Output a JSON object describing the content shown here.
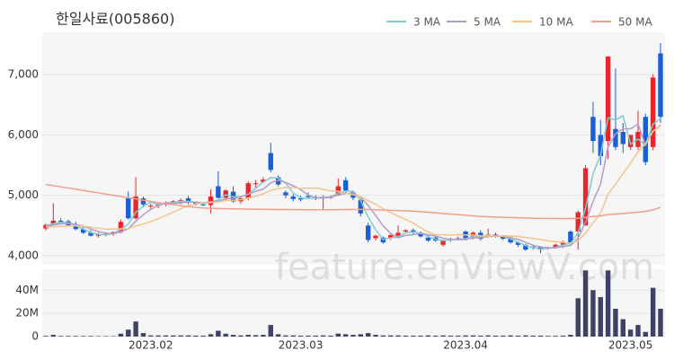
{
  "chart_data": [
    {
      "type": "candlestick",
      "title": "한일사료(005860)",
      "watermark": "feature.enViewV.com",
      "up_color": "#e8262c",
      "down_color": "#1a5fd6",
      "open": [
        4450,
        4530,
        4580,
        4570,
        4500,
        4440,
        4380,
        4330,
        4340,
        4360,
        4390,
        4950,
        4620,
        4950,
        4820,
        4830,
        4860,
        4880,
        4900,
        4950,
        4880,
        4850,
        4840,
        5150,
        4960,
        5060,
        4900,
        4950,
        5200,
        5220,
        5700,
        5300,
        5050,
        4980,
        4950,
        4990,
        4970,
        4960,
        4960,
        5000,
        5250,
        5050,
        4920,
        4500,
        4290,
        4300,
        4290,
        4330,
        4400,
        4420,
        4380,
        4300,
        4300,
        4180,
        4270,
        4280,
        4400,
        4300,
        4380,
        4330,
        4350,
        4320,
        4300,
        4220,
        4180,
        4150,
        4140,
        4130,
        4140,
        4180,
        4400,
        4400,
        4500,
        6300,
        6000,
        5900,
        6100,
        6050,
        5800,
        5800,
        6300,
        5800,
        7350
      ],
      "high": [
        4530,
        4870,
        4620,
        4600,
        4560,
        4480,
        4420,
        4380,
        4390,
        4400,
        4600,
        5060,
        5300,
        4980,
        4860,
        4880,
        4900,
        4920,
        4950,
        4990,
        4900,
        4880,
        5100,
        5400,
        5100,
        5150,
        4980,
        5230,
        5250,
        5300,
        5870,
        5330,
        5080,
        5020,
        4990,
        5050,
        5000,
        5000,
        5000,
        5280,
        5300,
        5080,
        4950,
        4550,
        4350,
        4320,
        4360,
        4500,
        4440,
        4450,
        4400,
        4340,
        4320,
        4270,
        4300,
        4320,
        4420,
        4400,
        4420,
        4450,
        4380,
        4340,
        4320,
        4240,
        4200,
        4180,
        4160,
        4150,
        4200,
        4250,
        4420,
        4750,
        5500,
        6550,
        6250,
        7300,
        7100,
        6200,
        6000,
        6400,
        6350,
        7000,
        7520
      ],
      "low": [
        4420,
        4500,
        4530,
        4480,
        4420,
        4360,
        4320,
        4300,
        4320,
        4330,
        4370,
        4600,
        4600,
        4800,
        4780,
        4790,
        4820,
        4840,
        4850,
        4850,
        4830,
        4820,
        4700,
        4950,
        4920,
        4880,
        4860,
        4920,
        5100,
        5200,
        5380,
        5150,
        4950,
        4900,
        4900,
        4950,
        4920,
        4750,
        4940,
        4990,
        5030,
        4920,
        4650,
        4220,
        4250,
        4200,
        4260,
        4290,
        4370,
        4360,
        4300,
        4230,
        4230,
        4150,
        4230,
        4250,
        4250,
        4270,
        4250,
        4300,
        4300,
        4260,
        4200,
        4150,
        4080,
        4100,
        4040,
        4100,
        4120,
        4130,
        4180,
        4100,
        4500,
        5700,
        5500,
        5600,
        5750,
        5700,
        5750,
        5750,
        5500,
        5750,
        6200
      ],
      "close": [
        4510,
        4580,
        4560,
        4500,
        4440,
        4380,
        4330,
        4350,
        4360,
        4390,
        4560,
        4620,
        4980,
        4850,
        4830,
        4860,
        4880,
        4900,
        4920,
        4880,
        4850,
        4840,
        4980,
        4960,
        5080,
        4900,
        4950,
        5200,
        5200,
        5260,
        5420,
        5180,
        5000,
        4940,
        4930,
        4970,
        4960,
        4980,
        4980,
        5150,
        5080,
        4960,
        4700,
        4260,
        4330,
        4220,
        4340,
        4380,
        4420,
        4380,
        4320,
        4250,
        4250,
        4250,
        4280,
        4290,
        4280,
        4380,
        4280,
        4350,
        4330,
        4280,
        4220,
        4180,
        4100,
        4130,
        4100,
        4140,
        4180,
        4220,
        4200,
        4720,
        5450,
        5900,
        5650,
        7300,
        5800,
        5850,
        6000,
        6050,
        5550,
        6950,
        6300
      ],
      "series": [
        {
          "name": "3 MA",
          "color": "#7fcdd0",
          "values": [
            4500,
            4530,
            4550,
            4547,
            4500,
            4440,
            4383,
            4353,
            4347,
            4367,
            4437,
            4523,
            4720,
            4817,
            4887,
            4847,
            4857,
            4880,
            4900,
            4900,
            4883,
            4857,
            4890,
            4927,
            5007,
            4980,
            4977,
            5017,
            5117,
            5220,
            5293,
            5287,
            5200,
            5040,
            4957,
            4947,
            4953,
            4970,
            4973,
            5037,
            5070,
            5063,
            4913,
            4640,
            4430,
            4270,
            4297,
            4313,
            4380,
            4393,
            4373,
            4317,
            4273,
            4250,
            4260,
            4273,
            4283,
            4317,
            4313,
            4337,
            4320,
            4320,
            4277,
            4227,
            4167,
            4137,
            4110,
            4123,
            4140,
            4180,
            4200,
            4380,
            4790,
            5357,
            5667,
            6283,
            6250,
            6317,
            5850,
            5933,
            5833,
            6183,
            6267
          ]
        },
        {
          "name": "5 MA",
          "color": "#b49bc8",
          "values": [
            4490,
            4510,
            4530,
            4535,
            4518,
            4492,
            4442,
            4400,
            4372,
            4362,
            4398,
            4444,
            4572,
            4680,
            4768,
            4828,
            4880,
            4864,
            4878,
            4888,
            4886,
            4878,
            4894,
            4902,
            4942,
            4952,
            4974,
            5018,
            5066,
            5102,
            5206,
            5252,
            5212,
            5160,
            5094,
            5004,
            4956,
            4956,
            4964,
            5008,
            5030,
            5030,
            4974,
            4830,
            4666,
            4494,
            4370,
            4296,
            4338,
            4348,
            4368,
            4350,
            4324,
            4290,
            4270,
            4264,
            4270,
            4296,
            4302,
            4316,
            4324,
            4324,
            4292,
            4272,
            4222,
            4172,
            4146,
            4130,
            4130,
            4154,
            4168,
            4292,
            4554,
            4898,
            5184,
            5804,
            6020,
            6100,
            6100,
            6180,
            5830,
            6060,
            6160
          ]
        },
        {
          "name": "10 MA",
          "color": "#f2c58f",
          "values": [
            4470,
            4480,
            4490,
            4495,
            4495,
            4490,
            4470,
            4455,
            4440,
            4440,
            4445,
            4449,
            4491,
            4526,
            4565,
            4613,
            4668,
            4723,
            4779,
            4828,
            4857,
            4879,
            4879,
            4890,
            4915,
            4919,
            4926,
            4956,
            4986,
            5024,
            5080,
            5114,
            5130,
            5128,
            5113,
            5120,
            5121,
            5099,
            5077,
            5066,
            5032,
            5010,
            4980,
            4912,
            4852,
            4777,
            4715,
            4655,
            4599,
            4540,
            4464,
            4393,
            4348,
            4347,
            4342,
            4349,
            4343,
            4343,
            4329,
            4326,
            4327,
            4330,
            4327,
            4320,
            4302,
            4286,
            4268,
            4244,
            4234,
            4221,
            4208,
            4252,
            4375,
            4547,
            4702,
            5019,
            5189,
            5360,
            5532,
            5719,
            5854,
            6064,
            6149
          ]
        },
        {
          "name": "50 MA",
          "color": "#f0a08a",
          "values": [
            5180,
            5160,
            5140,
            5120,
            5100,
            5080,
            5060,
            5040,
            5020,
            5000,
            4980,
            4960,
            4940,
            4920,
            4900,
            4880,
            4860,
            4845,
            4830,
            4815,
            4800,
            4790,
            4785,
            4780,
            4778,
            4776,
            4774,
            4772,
            4770,
            4768,
            4766,
            4765,
            4764,
            4763,
            4762,
            4761,
            4760,
            4760,
            4760,
            4762,
            4764,
            4766,
            4766,
            4764,
            4760,
            4756,
            4752,
            4748,
            4744,
            4738,
            4730,
            4720,
            4710,
            4700,
            4690,
            4680,
            4670,
            4660,
            4650,
            4645,
            4640,
            4636,
            4632,
            4628,
            4624,
            4620,
            4618,
            4616,
            4615,
            4614,
            4614,
            4620,
            4635,
            4650,
            4660,
            4680,
            4690,
            4700,
            4710,
            4720,
            4735,
            4760,
            4800
          ]
        }
      ],
      "ylim": [
        3850,
        7700
      ],
      "yticks": [
        {
          "value": 4000,
          "label": "4,000"
        },
        {
          "value": 5000,
          "label": "5,000"
        },
        {
          "value": 6000,
          "label": "6,000"
        },
        {
          "value": 7000,
          "label": "7,000"
        }
      ],
      "grid": true
    },
    {
      "type": "bar",
      "color": "#3f4266",
      "categories": [
        null,
        null,
        null,
        null,
        null,
        null,
        null,
        null,
        null,
        null,
        null,
        null,
        null,
        null,
        "2023.02",
        null,
        null,
        null,
        null,
        null,
        null,
        null,
        null,
        null,
        null,
        null,
        null,
        null,
        null,
        null,
        null,
        null,
        null,
        null,
        "2023.03",
        null,
        null,
        null,
        null,
        null,
        null,
        null,
        null,
        null,
        null,
        null,
        null,
        null,
        null,
        null,
        null,
        null,
        null,
        null,
        null,
        null,
        "2023.04",
        null,
        null,
        null,
        null,
        null,
        null,
        null,
        null,
        null,
        null,
        null,
        null,
        null,
        null,
        null,
        null,
        null,
        null,
        null,
        null,
        null,
        "2023.05",
        null,
        null,
        null,
        null
      ],
      "values": [
        600000,
        1500000,
        500000,
        500000,
        500000,
        500000,
        500000,
        400000,
        400000,
        400000,
        2500000,
        6000000,
        13000000,
        3000000,
        1000000,
        1000000,
        1000000,
        1000000,
        1000000,
        1000000,
        800000,
        800000,
        2000000,
        5000000,
        2500000,
        1500000,
        1000000,
        1500000,
        1200000,
        1500000,
        10000000,
        2000000,
        1000000,
        1000000,
        800000,
        800000,
        800000,
        1000000,
        800000,
        2500000,
        2000000,
        1500000,
        2000000,
        3000000,
        1500000,
        1000000,
        1000000,
        1000000,
        800000,
        800000,
        800000,
        1000000,
        800000,
        1000000,
        800000,
        800000,
        1000000,
        1000000,
        800000,
        1000000,
        800000,
        800000,
        1000000,
        800000,
        1000000,
        800000,
        800000,
        600000,
        600000,
        800000,
        1500000,
        33000000,
        57000000,
        40000000,
        34000000,
        57000000,
        24000000,
        15000000,
        6000000,
        10000000,
        4000000,
        42000000,
        24000000
      ],
      "ylim": [
        0,
        58000000
      ],
      "yticks": [
        0,
        {
          "value": 20000000,
          "label": "20M"
        },
        {
          "value": 40000000,
          "label": "40M"
        }
      ],
      "grid": true
    }
  ]
}
